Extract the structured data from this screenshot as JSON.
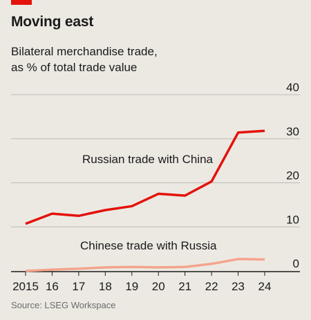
{
  "header": {
    "title": "Moving east",
    "subtitle_line1": "Bilateral merchandise trade,",
    "subtitle_line2": "as % of total trade value"
  },
  "source": "Source: LSEG Workspace",
  "colors": {
    "background": "#ece9e3",
    "accent": "#e3120b",
    "series_russia": "#e3120b",
    "series_china": "#f4a48c",
    "grid": "#bdbab4",
    "axis": "#1a1a1a"
  },
  "chart_data": {
    "type": "line",
    "title": "Moving east",
    "subtitle": "Bilateral merchandise trade, as % of total trade value",
    "xlabel": "",
    "ylabel": "",
    "x": [
      "2015",
      "16",
      "17",
      "18",
      "19",
      "20",
      "21",
      "22",
      "23",
      "24"
    ],
    "ylim": [
      0,
      40
    ],
    "yticks": [
      0,
      10,
      20,
      30,
      40
    ],
    "y_axis_position": "right",
    "grid": true,
    "legend": "inline labels",
    "series": [
      {
        "name": "Russian trade with China",
        "color": "#e3120b",
        "values": [
          10.7,
          13.0,
          12.5,
          13.8,
          14.7,
          17.5,
          17.1,
          20.3,
          31.4,
          31.8
        ]
      },
      {
        "name": "Chinese trade with Russia",
        "color": "#f4a48c",
        "values": [
          0.0,
          0.3,
          0.5,
          0.8,
          0.9,
          0.8,
          0.9,
          1.6,
          2.7,
          2.6
        ]
      }
    ]
  }
}
